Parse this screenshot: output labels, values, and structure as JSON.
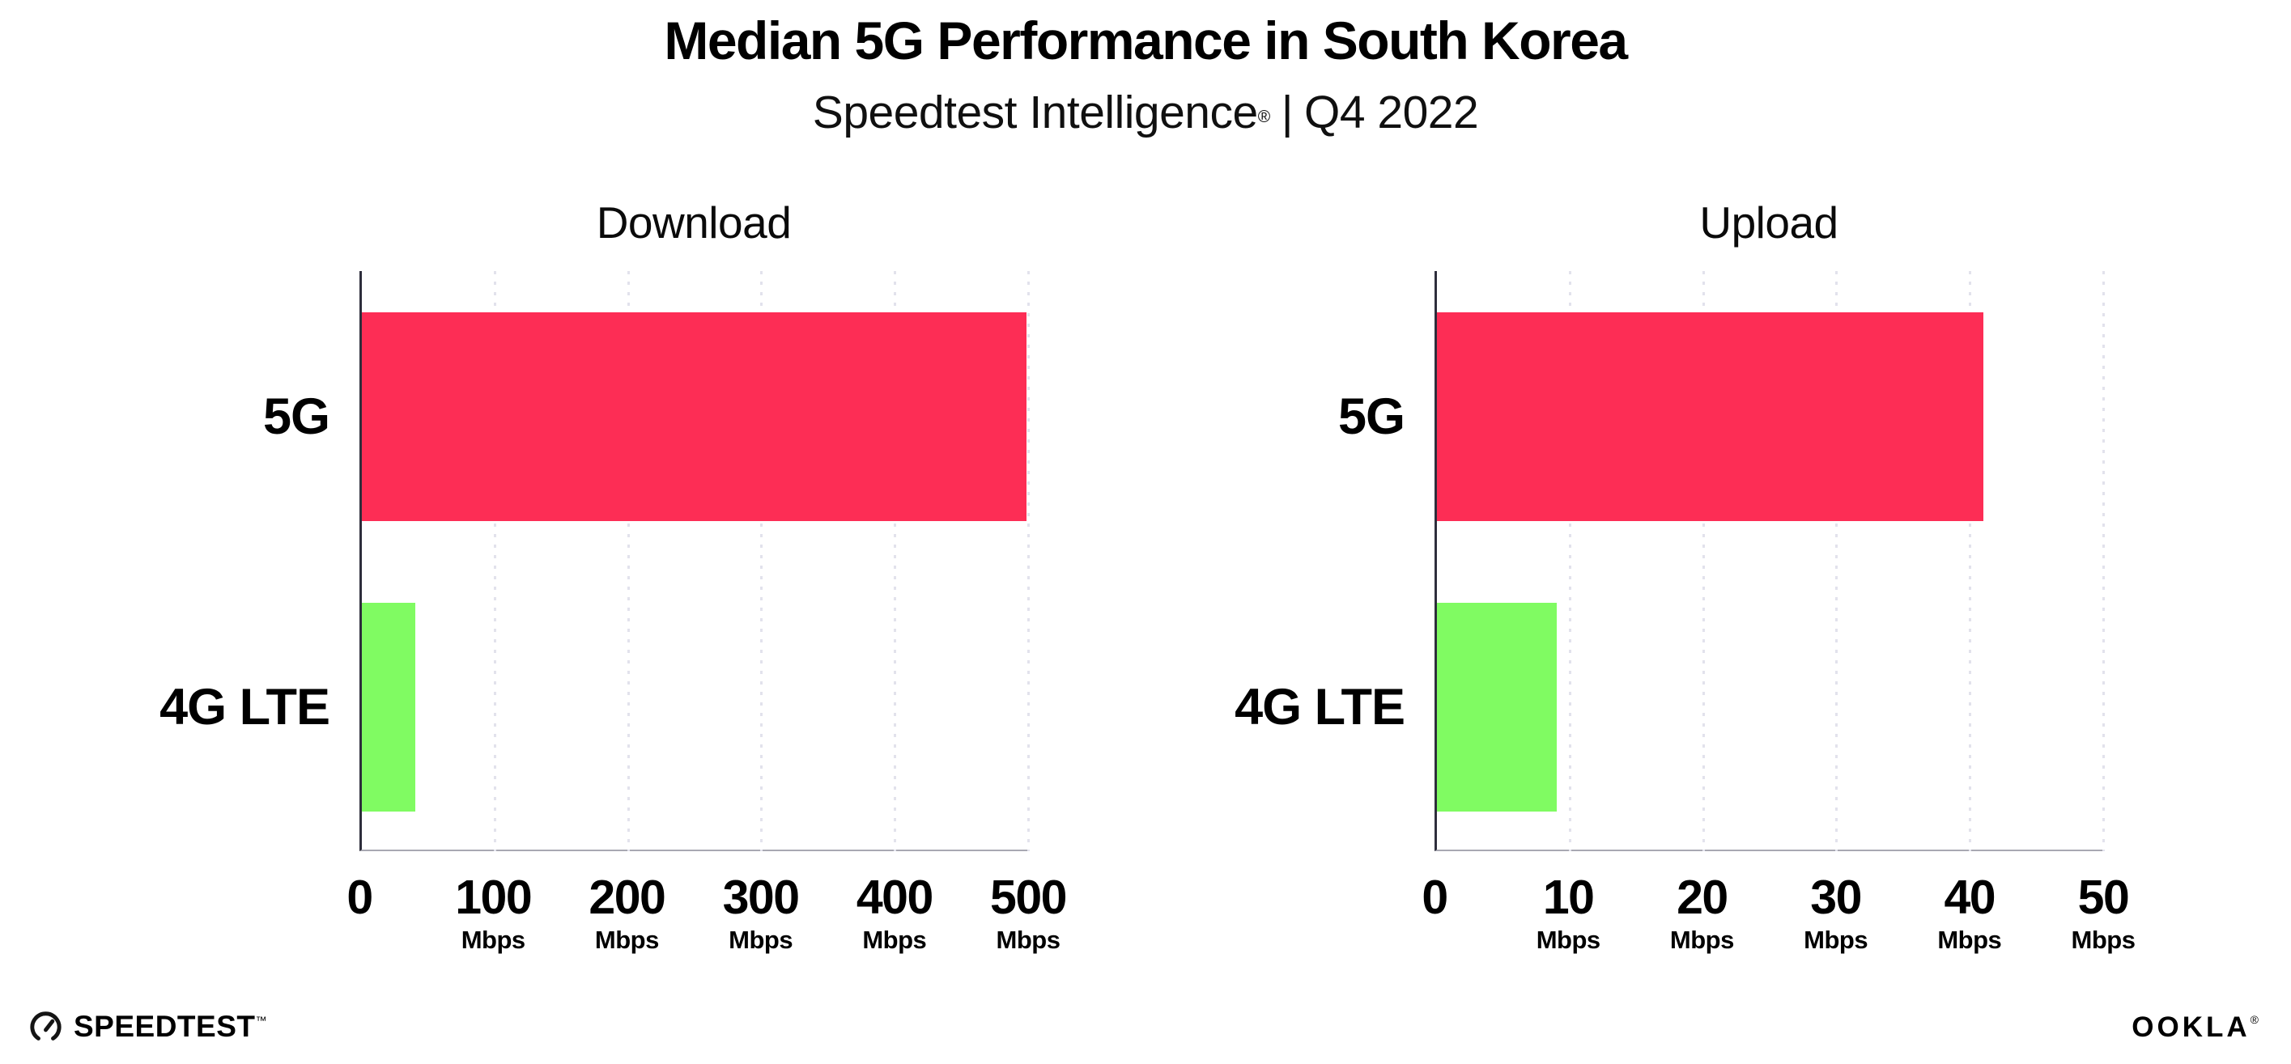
{
  "header": {
    "title": "Median 5G Performance in South Korea",
    "subtitle_brand": "Speedtest Intelligence",
    "subtitle_reg": "®",
    "subtitle_separator": "|",
    "subtitle_period": "Q4 2022"
  },
  "colors": {
    "bar_5g": "#fd2d55",
    "bar_4g_lte": "#80fb62",
    "gridline": "#e2e2ec",
    "y_axis_line": "#2e2e3c",
    "x_axis_line": "#a8a8b2",
    "text": "#000000"
  },
  "chart_data": [
    {
      "type": "bar",
      "orientation": "horizontal",
      "title": "Download",
      "categories": [
        "5G",
        "4G LTE"
      ],
      "values": [
        499,
        40
      ],
      "bar_colors": [
        "#fd2d55",
        "#80fb62"
      ],
      "xlim": [
        0,
        500
      ],
      "xticks": [
        0,
        100,
        200,
        300,
        400,
        500
      ],
      "tick_unit": "Mbps",
      "grid": "vertical-dotted",
      "legend": "none"
    },
    {
      "type": "bar",
      "orientation": "horizontal",
      "title": "Upload",
      "categories": [
        "5G",
        "4G LTE"
      ],
      "values": [
        41,
        9
      ],
      "bar_colors": [
        "#fd2d55",
        "#80fb62"
      ],
      "xlim": [
        0,
        50
      ],
      "xticks": [
        0,
        10,
        20,
        30,
        40,
        50
      ],
      "tick_unit": "Mbps",
      "grid": "vertical-dotted",
      "legend": "none"
    }
  ],
  "footer": {
    "speedtest_label": "SPEEDTEST",
    "speedtest_mark": "™",
    "ookla_label": "OOKLA",
    "ookla_mark": "®"
  }
}
